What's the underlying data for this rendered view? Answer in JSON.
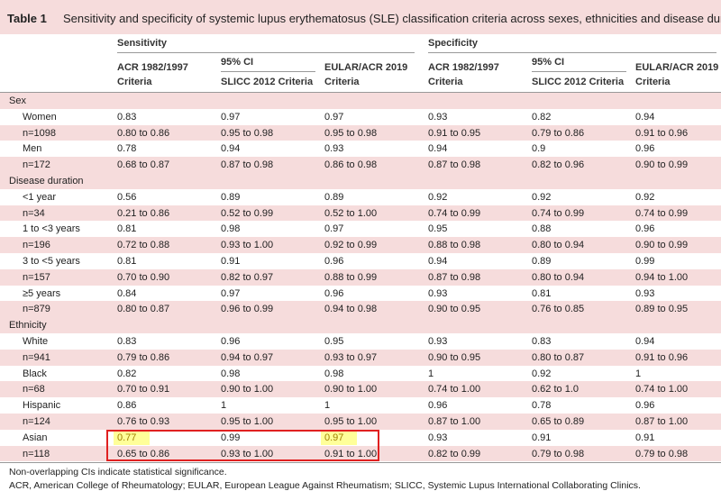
{
  "title": {
    "label": "Table 1",
    "text": "Sensitivity and specificity of systemic lupus erythematosus (SLE) classification criteria across sexes, ethnicities and disease duration"
  },
  "header": {
    "groups": [
      "Sensitivity",
      "Specificity"
    ],
    "ci_labels": [
      "95% CI",
      "95% CI"
    ],
    "columns": [
      "ACR 1982/1997 Criteria",
      "SLICC 2012 Criteria",
      "EULAR/ACR 2019 Criteria",
      "ACR 1982/1997 Criteria",
      "SLICC 2012 Criteria",
      "EULAR/ACR 2019 Criteria"
    ]
  },
  "sections": [
    {
      "name": "Sex",
      "rows": [
        [
          "Women",
          "0.83",
          "0.97",
          "0.97",
          "0.93",
          "0.82",
          "0.94"
        ],
        [
          "n=1098",
          "0.80 to 0.86",
          "0.95 to 0.98",
          "0.95 to 0.98",
          "0.91 to 0.95",
          "0.79 to 0.86",
          "0.91 to 0.96"
        ],
        [
          "Men",
          "0.78",
          "0.94",
          "0.93",
          "0.94",
          "0.9",
          "0.96"
        ],
        [
          "n=172",
          "0.68 to 0.87",
          "0.87 to 0.98",
          "0.86 to 0.98",
          "0.87 to 0.98",
          "0.82 to 0.96",
          "0.90 to 0.99"
        ]
      ]
    },
    {
      "name": "Disease duration",
      "rows": [
        [
          "<1 year",
          "0.56",
          "0.89",
          "0.89",
          "0.92",
          "0.92",
          "0.92"
        ],
        [
          "n=34",
          "0.21 to 0.86",
          "0.52 to 0.99",
          "0.52 to 1.00",
          "0.74 to 0.99",
          "0.74 to 0.99",
          "0.74 to 0.99"
        ],
        [
          "1 to <3 years",
          "0.81",
          "0.98",
          "0.97",
          "0.95",
          "0.88",
          "0.96"
        ],
        [
          "n=196",
          "0.72 to 0.88",
          "0.93 to 1.00",
          "0.92 to 0.99",
          "0.88 to 0.98",
          "0.80 to 0.94",
          "0.90 to 0.99"
        ],
        [
          "3 to <5 years",
          "0.81",
          "0.91",
          "0.96",
          "0.94",
          "0.89",
          "0.99"
        ],
        [
          "n=157",
          "0.70 to 0.90",
          "0.82 to 0.97",
          "0.88 to 0.99",
          "0.87 to 0.98",
          "0.80 to 0.94",
          "0.94 to 1.00"
        ],
        [
          "≥5 years",
          "0.84",
          "0.97",
          "0.96",
          "0.93",
          "0.81",
          "0.93"
        ],
        [
          "n=879",
          "0.80 to 0.87",
          "0.96 to 0.99",
          "0.94 to 0.98",
          "0.90 to 0.95",
          "0.76 to 0.85",
          "0.89 to 0.95"
        ]
      ]
    },
    {
      "name": "Ethnicity",
      "rows": [
        [
          "White",
          "0.83",
          "0.96",
          "0.95",
          "0.93",
          "0.83",
          "0.94"
        ],
        [
          "n=941",
          "0.79 to 0.86",
          "0.94 to 0.97",
          "0.93 to 0.97",
          "0.90 to 0.95",
          "0.80 to 0.87",
          "0.91 to 0.96"
        ],
        [
          "Black",
          "0.82",
          "0.98",
          "0.98",
          "1",
          "0.92",
          "1"
        ],
        [
          "n=68",
          "0.70 to 0.91",
          "0.90 to 1.00",
          "0.90 to 1.00",
          "0.74 to 1.00",
          "0.62 to 1.0",
          "0.74 to 1.00"
        ],
        [
          "Hispanic",
          "0.86",
          "1",
          "1",
          "0.96",
          "0.78",
          "0.96"
        ],
        [
          "n=124",
          "0.76 to 0.93",
          "0.95 to 1.00",
          "0.95 to 1.00",
          "0.87 to 1.00",
          "0.65 to 0.89",
          "0.87 to 1.00"
        ],
        [
          "Asian",
          "0.77",
          "0.99",
          "0.97",
          "0.93",
          "0.91",
          "0.91"
        ],
        [
          "n=118",
          "0.65 to 0.86",
          "0.93 to 1.00",
          "0.91 to 1.00",
          "0.82 to 0.99",
          "0.79 to 0.98",
          "0.79 to 0.98"
        ]
      ]
    }
  ],
  "footnotes": [
    "Non-overlapping CIs indicate statistical significance.",
    "ACR, American College of Rheumatology; EULAR, European League Against Rheumatism; SLICC, Systemic Lupus International Collaborating Clinics."
  ]
}
